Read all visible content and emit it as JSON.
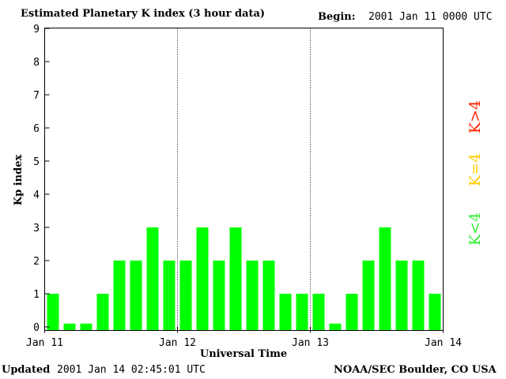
{
  "chart_data": {
    "type": "bar",
    "title": "Estimated Planetary K index (3 hour data)",
    "begin_label": "Begin:",
    "begin_value": "2001 Jan 11 0000 UTC",
    "ylabel": "Kp index",
    "xlabel": "Universal Time",
    "ylim": [
      0,
      9
    ],
    "yticks": [
      "0",
      "1",
      "2",
      "3",
      "4",
      "5",
      "6",
      "7",
      "8",
      "9"
    ],
    "xtick_labels": [
      "Jan 11",
      "Jan 12",
      "Jan 13",
      "Jan 14"
    ],
    "values": [
      1,
      0.1,
      0.1,
      1,
      2,
      2,
      3,
      2,
      2,
      3,
      2,
      3,
      2,
      2,
      1,
      1,
      1,
      0.1,
      1,
      2,
      3,
      2,
      2,
      1
    ],
    "bar_color": "#00ff00",
    "legend": [
      {
        "text": "K<4",
        "color": "#33ee33"
      },
      {
        "text": "K=4",
        "color": "#ffcc00"
      },
      {
        "text": "K>4",
        "color": "#ff2200"
      }
    ],
    "legend_placement": "right, vertical",
    "grid": "dotted vertical lines at day boundaries"
  },
  "footer": {
    "updated_label": "Updated",
    "updated_value": "2001 Jan 14 02:45:01 UTC",
    "source": "NOAA/SEC Boulder, CO USA"
  }
}
